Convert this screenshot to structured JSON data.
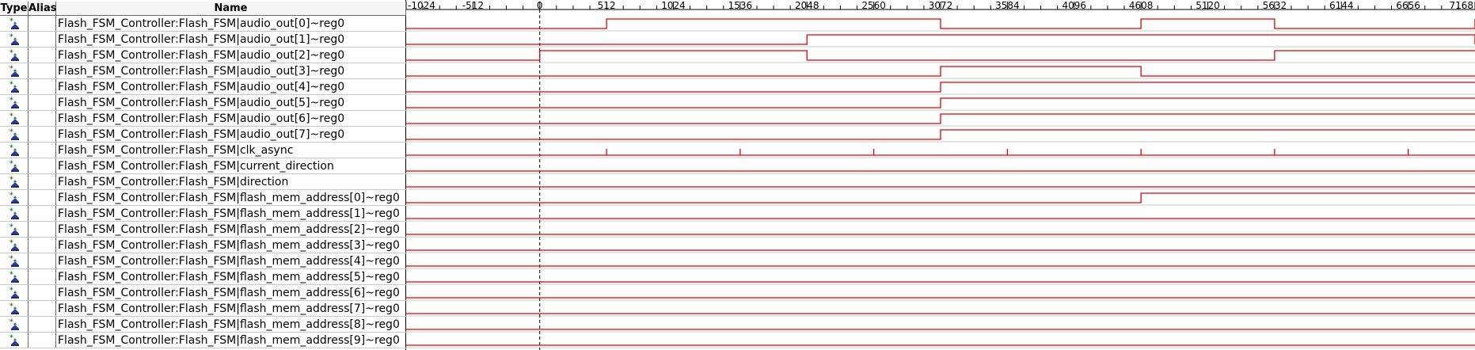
{
  "columns": {
    "type": "Type",
    "alias": "Alias",
    "name": "Name"
  },
  "signal_icon": "output-pin-icon",
  "colors": {
    "waveform": "#e00000",
    "cursor": "#000000",
    "grid": "#c8c8c8"
  },
  "timeline": {
    "ticks": [
      "-1024",
      "-512",
      "0",
      "512",
      "1024",
      "1536",
      "2048",
      "2560",
      "3072",
      "3584",
      "4096",
      "4608",
      "5120",
      "5632",
      "6144",
      "6656",
      "7168"
    ],
    "tick_values": [
      -1024,
      -512,
      0,
      512,
      1024,
      1536,
      2048,
      2560,
      3072,
      3584,
      4096,
      4608,
      5120,
      5632,
      6144,
      6656,
      7168
    ],
    "cursor_time": 0
  },
  "signals": [
    {
      "name": "Flash_FSM_Controller:Flash_FSM|audio_out[0]~reg0",
      "kind": "bit",
      "initial": 0,
      "toggles": [
        512,
        3072,
        4608,
        5632,
        7168
      ]
    },
    {
      "name": "Flash_FSM_Controller:Flash_FSM|audio_out[1]~reg0",
      "kind": "bit",
      "initial": 0,
      "toggles": [
        2048,
        7168
      ]
    },
    {
      "name": "Flash_FSM_Controller:Flash_FSM|audio_out[2]~reg0",
      "kind": "bit",
      "initial": 0,
      "toggles": [
        0,
        2048,
        5632
      ]
    },
    {
      "name": "Flash_FSM_Controller:Flash_FSM|audio_out[3]~reg0",
      "kind": "bit",
      "initial": 0,
      "toggles": [
        3072,
        4608
      ]
    },
    {
      "name": "Flash_FSM_Controller:Flash_FSM|audio_out[4]~reg0",
      "kind": "bit",
      "initial": 0,
      "toggles": [
        3072
      ]
    },
    {
      "name": "Flash_FSM_Controller:Flash_FSM|audio_out[5]~reg0",
      "kind": "bit",
      "initial": 0,
      "toggles": [
        3072
      ]
    },
    {
      "name": "Flash_FSM_Controller:Flash_FSM|audio_out[6]~reg0",
      "kind": "bit",
      "initial": 0,
      "toggles": [
        3072
      ]
    },
    {
      "name": "Flash_FSM_Controller:Flash_FSM|audio_out[7]~reg0",
      "kind": "bit",
      "initial": 0,
      "toggles": [
        3072
      ]
    },
    {
      "name": "Flash_FSM_Controller:Flash_FSM|clk_async",
      "kind": "clock",
      "initial": 0,
      "pulses": [
        512,
        1536,
        2560,
        3584,
        4608,
        5632,
        6656
      ]
    },
    {
      "name": "Flash_FSM_Controller:Flash_FSM|current_direction",
      "kind": "bit",
      "initial": 0,
      "toggles": []
    },
    {
      "name": "Flash_FSM_Controller:Flash_FSM|direction",
      "kind": "bit",
      "initial": 0,
      "toggles": []
    },
    {
      "name": "Flash_FSM_Controller:Flash_FSM|flash_mem_address[0]~reg0",
      "kind": "bit",
      "initial": 0,
      "toggles": [
        4608
      ]
    },
    {
      "name": "Flash_FSM_Controller:Flash_FSM|flash_mem_address[1]~reg0",
      "kind": "bit",
      "initial": 0,
      "toggles": []
    },
    {
      "name": "Flash_FSM_Controller:Flash_FSM|flash_mem_address[2]~reg0",
      "kind": "bit",
      "initial": 0,
      "toggles": []
    },
    {
      "name": "Flash_FSM_Controller:Flash_FSM|flash_mem_address[3]~reg0",
      "kind": "bit",
      "initial": 0,
      "toggles": []
    },
    {
      "name": "Flash_FSM_Controller:Flash_FSM|flash_mem_address[4]~reg0",
      "kind": "bit",
      "initial": 0,
      "toggles": []
    },
    {
      "name": "Flash_FSM_Controller:Flash_FSM|flash_mem_address[5]~reg0",
      "kind": "bit",
      "initial": 0,
      "toggles": []
    },
    {
      "name": "Flash_FSM_Controller:Flash_FSM|flash_mem_address[6]~reg0",
      "kind": "bit",
      "initial": 0,
      "toggles": []
    },
    {
      "name": "Flash_FSM_Controller:Flash_FSM|flash_mem_address[7]~reg0",
      "kind": "bit",
      "initial": 0,
      "toggles": []
    },
    {
      "name": "Flash_FSM_Controller:Flash_FSM|flash_mem_address[8]~reg0",
      "kind": "bit",
      "initial": 0,
      "toggles": []
    },
    {
      "name": "Flash_FSM_Controller:Flash_FSM|flash_mem_address[9]~reg0",
      "kind": "bit",
      "initial": 0,
      "toggles": []
    }
  ]
}
